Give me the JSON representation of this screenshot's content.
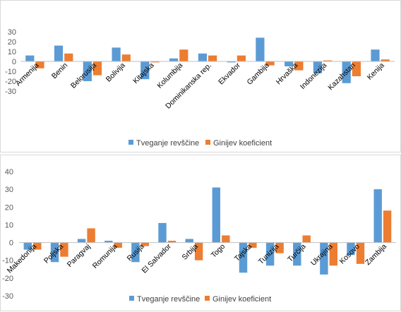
{
  "colors": {
    "series1": "#5B9BD5",
    "series2": "#ED7D31",
    "axis": "#bfbfbf"
  },
  "chart_data": [
    {
      "type": "bar",
      "categories": [
        "Armenija",
        "Benin",
        "Belorusija",
        "Bolivija",
        "Kitajska",
        "Kolumbija",
        "Dominikanska rep.",
        "Ekvador",
        "Gambija",
        "Hrvaška",
        "Indonezija",
        "Kazahstan",
        "Kenija"
      ],
      "series": [
        {
          "name": "Tveganje revščine",
          "values": [
            6,
            16,
            -20,
            14,
            -18,
            3,
            8,
            -1,
            24,
            -5,
            -12,
            -22,
            12
          ]
        },
        {
          "name": "Ginijev koeficient",
          "values": [
            -7,
            8,
            -14,
            7,
            -1,
            12,
            6,
            6,
            -4,
            -9,
            1,
            -15,
            2
          ]
        }
      ],
      "ylim": [
        -30,
        30
      ],
      "yticks": [
        -30,
        -20,
        -10,
        0,
        10,
        20,
        30
      ],
      "legend": "bottom"
    },
    {
      "type": "bar",
      "categories": [
        "Makedonija",
        "Poljska",
        "Paragvaj",
        "Romunija",
        "Rusija",
        "El Salvador",
        "Srbija",
        "Togo",
        "Tajska",
        "Tunizija",
        "Turčija",
        "Ukrajina",
        "Kosovo",
        "Zambija"
      ],
      "series": [
        {
          "name": "Tveganje revščine",
          "values": [
            -4,
            -11,
            2,
            1,
            -11,
            11,
            2,
            31,
            -17,
            -13,
            -13,
            -18,
            -7,
            30
          ]
        },
        {
          "name": "Ginijev koeficient",
          "values": [
            -4,
            -8,
            8,
            -3,
            -2,
            1,
            -10,
            4,
            -3,
            -6,
            4,
            -13,
            -12,
            18
          ]
        }
      ],
      "ylim": [
        -30,
        40
      ],
      "yticks": [
        -30,
        -20,
        -10,
        0,
        10,
        20,
        30,
        40
      ],
      "legend": "bottom"
    }
  ]
}
